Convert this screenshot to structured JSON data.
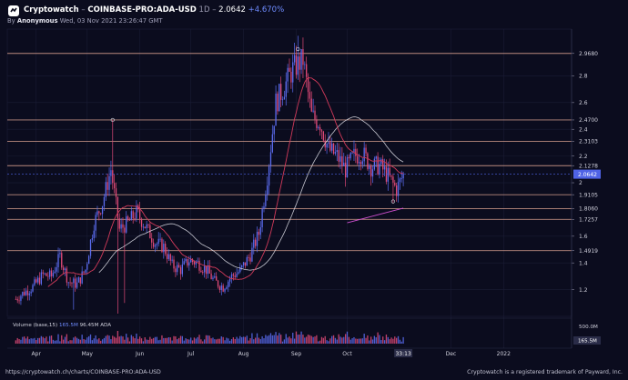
{
  "header": {
    "brand": "Cryptowatch",
    "separator": "–",
    "symbol": "COINBASE-PRO:ADA-USD",
    "interval": "1D",
    "dash": "–",
    "price": "2.0642",
    "change": "+4.670%",
    "by": "By",
    "author": "Anonymous",
    "datetime": "Wed, 03 Nov 2021 23:26:47 GMT"
  },
  "footer": {
    "url": "https://cryptowatch.ch/charts/COINBASE-PRO:ADA-USD",
    "trademark": "Cryptowatch is a registered trademark of Payward, Inc."
  },
  "colors": {
    "background": "#0b0c1e",
    "candle_up": "#5b6cf0",
    "candle_down": "#e04a78",
    "ma_fast": "#d23a5a",
    "ma_slow": "#e6e6ee",
    "level_line": "#d9a090",
    "trend_line": "#d050d0",
    "price_tag": "#4f63e6"
  },
  "chart_data": {
    "type": "line",
    "title": "COINBASE-PRO:ADA-USD 1D",
    "x_ticks": [
      "Apr",
      "May",
      "Jun",
      "Jul",
      "Aug",
      "Sep",
      "Oct",
      "Dec",
      "2022"
    ],
    "countdown": "33:13",
    "y_ticks": [
      "2.9680",
      "2.8",
      "2.6",
      "2.4700",
      "2.4",
      "2.3103",
      "2.2",
      "2.1278",
      "2",
      "1.9105",
      "1.8060",
      "1.7257",
      "1.6",
      "1.4919",
      "1.4",
      "1.2"
    ],
    "current_price_label": "2.0642",
    "ylim": [
      1.0,
      3.15
    ],
    "horizontal_levels": [
      2.968,
      2.47,
      2.3103,
      2.1278,
      1.9105,
      1.806,
      1.7257,
      1.4919
    ],
    "close_prices": {
      "x": [
        "2021-03-20",
        "2021-03-25",
        "2021-03-30",
        "2021-04-05",
        "2021-04-10",
        "2021-04-15",
        "2021-04-20",
        "2021-04-25",
        "2021-04-30",
        "2021-05-05",
        "2021-05-10",
        "2021-05-15",
        "2021-05-20",
        "2021-05-25",
        "2021-05-30",
        "2021-06-05",
        "2021-06-10",
        "2021-06-15",
        "2021-06-20",
        "2021-06-25",
        "2021-06-30",
        "2021-07-05",
        "2021-07-10",
        "2021-07-15",
        "2021-07-20",
        "2021-07-25",
        "2021-07-30",
        "2021-08-05",
        "2021-08-10",
        "2021-08-15",
        "2021-08-20",
        "2021-08-25",
        "2021-08-30",
        "2021-09-05",
        "2021-09-10",
        "2021-09-15",
        "2021-09-20",
        "2021-09-25",
        "2021-09-30",
        "2021-10-05",
        "2021-10-10",
        "2021-10-15",
        "2021-10-20",
        "2021-10-25",
        "2021-10-30",
        "2021-11-03"
      ],
      "y": [
        1.13,
        1.18,
        1.22,
        1.31,
        1.3,
        1.45,
        1.26,
        1.24,
        1.35,
        1.7,
        1.85,
        2.1,
        1.65,
        1.7,
        1.78,
        1.66,
        1.55,
        1.52,
        1.38,
        1.35,
        1.42,
        1.4,
        1.35,
        1.26,
        1.22,
        1.3,
        1.34,
        1.46,
        1.62,
        2.05,
        2.6,
        2.72,
        2.85,
        2.92,
        2.5,
        2.45,
        2.25,
        2.2,
        2.1,
        2.2,
        2.22,
        2.12,
        2.13,
        2.05,
        1.95,
        2.06
      ]
    },
    "volume": {
      "label": "Volume (base,15)",
      "value1": "165.5M",
      "value2": "96.45M ADA",
      "axis_label_top": "500.0M",
      "axis_label_current": "165.5M"
    }
  }
}
